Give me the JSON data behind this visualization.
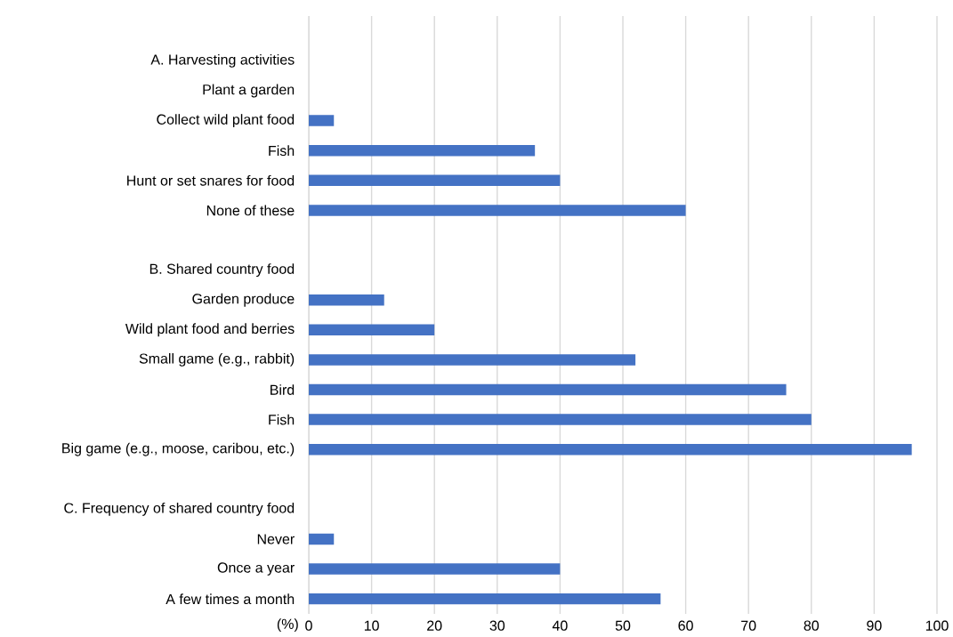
{
  "chart_data": {
    "type": "bar",
    "orientation": "horizontal",
    "xlabel": "(%)",
    "categories": [
      null,
      "A. Harvesting activities",
      "Plant a garden",
      "Collect wild plant food",
      "Fish",
      "Hunt or set snares for food",
      "None of these",
      null,
      "B. Shared country food",
      "Garden produce",
      "Wild plant food and berries",
      "Small game (e.g., rabbit)",
      "Bird",
      "Fish",
      "Big game (e.g., moose, caribou, etc.)",
      null,
      "C. Frequency of shared country food",
      "Never",
      "Once a year",
      "A few times a month"
    ],
    "values": [
      null,
      null,
      0,
      4,
      36,
      40,
      60,
      null,
      null,
      12,
      20,
      52,
      76,
      80,
      96,
      null,
      null,
      4,
      40,
      56
    ],
    "color": "#4472c4",
    "xlim": [
      0,
      100
    ],
    "xticks": [
      0,
      10,
      20,
      30,
      40,
      50,
      60,
      70,
      80,
      90,
      100
    ],
    "grid": "x"
  }
}
